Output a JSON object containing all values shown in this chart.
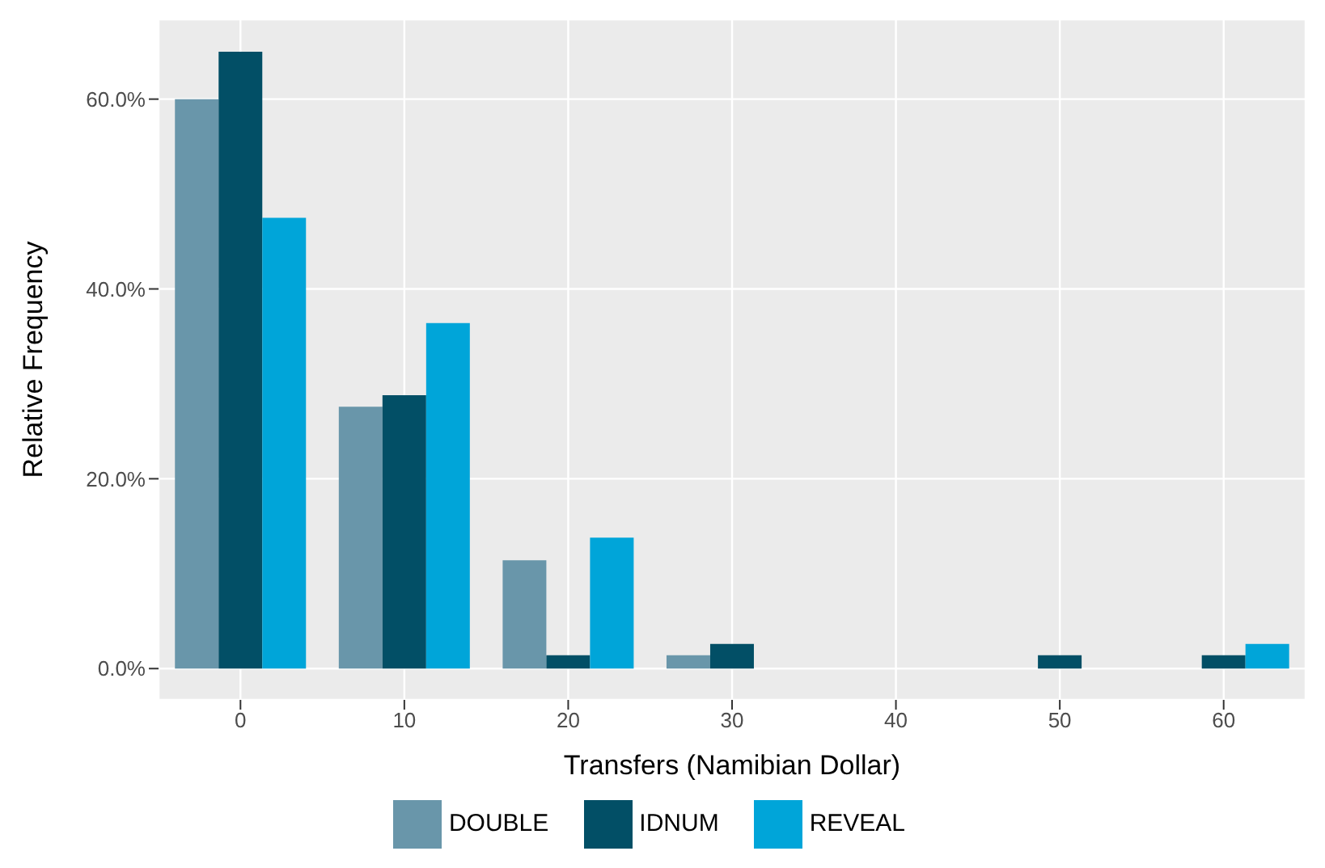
{
  "chart_data": {
    "type": "bar",
    "xlabel": "Transfers (Namibian Dollar)",
    "ylabel": "Relative Frequency",
    "categories": [
      "0",
      "10",
      "20",
      "30",
      "40",
      "50",
      "60"
    ],
    "series": [
      {
        "name": "DOUBLE",
        "color": "#6996aa",
        "values": [
          60.0,
          27.6,
          11.4,
          1.4,
          0,
          0,
          0
        ]
      },
      {
        "name": "IDNUM",
        "color": "#024f66",
        "values": [
          65.0,
          28.8,
          1.4,
          2.6,
          0,
          1.4,
          1.4
        ]
      },
      {
        "name": "REVEAL",
        "color": "#00a5d9",
        "values": [
          47.5,
          36.4,
          13.8,
          0,
          0,
          0,
          2.6
        ]
      }
    ],
    "ylim": [
      -3.3,
      68.4
    ],
    "yticks": [
      {
        "value": 0,
        "label": "0.0%"
      },
      {
        "value": 20,
        "label": "20.0%"
      },
      {
        "value": 40,
        "label": "40.0%"
      },
      {
        "value": 60,
        "label": "60.0%"
      }
    ],
    "grid": true,
    "legend": "bottom"
  }
}
